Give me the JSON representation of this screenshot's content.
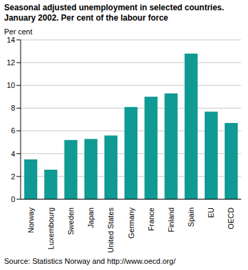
{
  "chart_data": {
    "type": "bar",
    "title": "Seasonal adjusted unemployment in selected countries. January 2002. Per cent of the labour force",
    "ylabel": "Per cent",
    "source": "Source: Statistics Norway and http://www.oecd.org/",
    "categories": [
      "Norway",
      "Luxembourg",
      "Sweden",
      "Japan",
      "United States",
      "Germany",
      "France",
      "Finland",
      "Spain",
      "EU",
      "OECD"
    ],
    "values": [
      3.5,
      2.6,
      5.2,
      5.3,
      5.6,
      8.1,
      9.0,
      9.3,
      12.8,
      7.7,
      6.7
    ],
    "color": "#0f9a94",
    "ylim": [
      0,
      14
    ],
    "yticks": [
      0,
      2,
      4,
      6,
      8,
      10,
      12,
      14
    ],
    "grid": true
  }
}
